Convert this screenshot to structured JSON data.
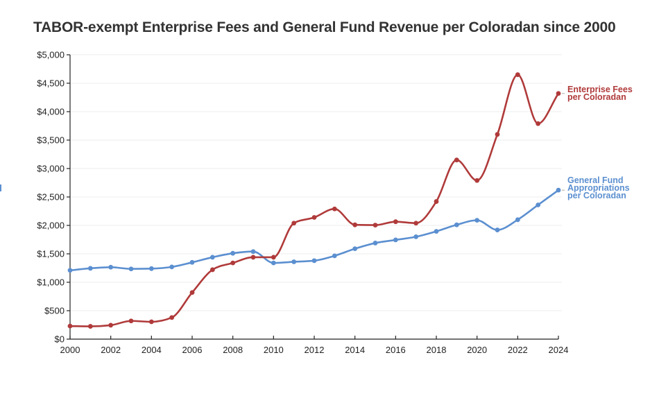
{
  "chart_data": {
    "type": "line",
    "title": "TABOR-exempt Enterprise Fees and General Fund Revenue per Coloradan since 2000",
    "xlabel": "",
    "ylabel": "",
    "x": [
      2000,
      2001,
      2002,
      2003,
      2004,
      2005,
      2006,
      2007,
      2008,
      2009,
      2010,
      2011,
      2012,
      2013,
      2014,
      2015,
      2016,
      2017,
      2018,
      2019,
      2020,
      2021,
      2022,
      2023,
      2024
    ],
    "xlim": [
      2000,
      2024
    ],
    "ylim": [
      0,
      5000
    ],
    "x_ticks": [
      2000,
      2002,
      2004,
      2006,
      2008,
      2010,
      2012,
      2014,
      2016,
      2018,
      2020,
      2022,
      2024
    ],
    "x_tick_labels": [
      "2000",
      "2002",
      "2004",
      "2006",
      "2008",
      "2010",
      "2012",
      "2014",
      "2016",
      "2018",
      "2020",
      "2022",
      "2024"
    ],
    "y_ticks": [
      0,
      500,
      1000,
      1500,
      2000,
      2500,
      3000,
      3500,
      4000,
      4500,
      5000
    ],
    "y_tick_labels": [
      "$0",
      "$500",
      "$1,000",
      "$1,500",
      "$2,000",
      "$2,500",
      "$3,000",
      "$3,500",
      "$4,000",
      "$4,500",
      "$5,000"
    ],
    "grid": "horizontal",
    "legend": "inline-right",
    "series": [
      {
        "name": "Enterprise Fees per Coloradan",
        "label_lines": [
          "Enterprise Fees",
          "per Coloradan"
        ],
        "color": "#b03a3a",
        "values": [
          230,
          225,
          245,
          320,
          305,
          380,
          820,
          1220,
          1340,
          1440,
          1440,
          2040,
          2140,
          2290,
          2010,
          2005,
          2065,
          2040,
          2420,
          3150,
          2790,
          3600,
          4650,
          3790,
          4320
        ]
      },
      {
        "name": "General Fund Appropriations per Coloradan",
        "label_lines": [
          "General Fund",
          "Appropriations",
          "per Coloradan"
        ],
        "color": "#5b8fd0",
        "values": [
          1210,
          1245,
          1265,
          1235,
          1240,
          1270,
          1350,
          1440,
          1510,
          1540,
          1340,
          1360,
          1380,
          1465,
          1590,
          1690,
          1745,
          1800,
          1895,
          2010,
          2090,
          1920,
          2100,
          2360,
          2620
        ]
      }
    ]
  }
}
